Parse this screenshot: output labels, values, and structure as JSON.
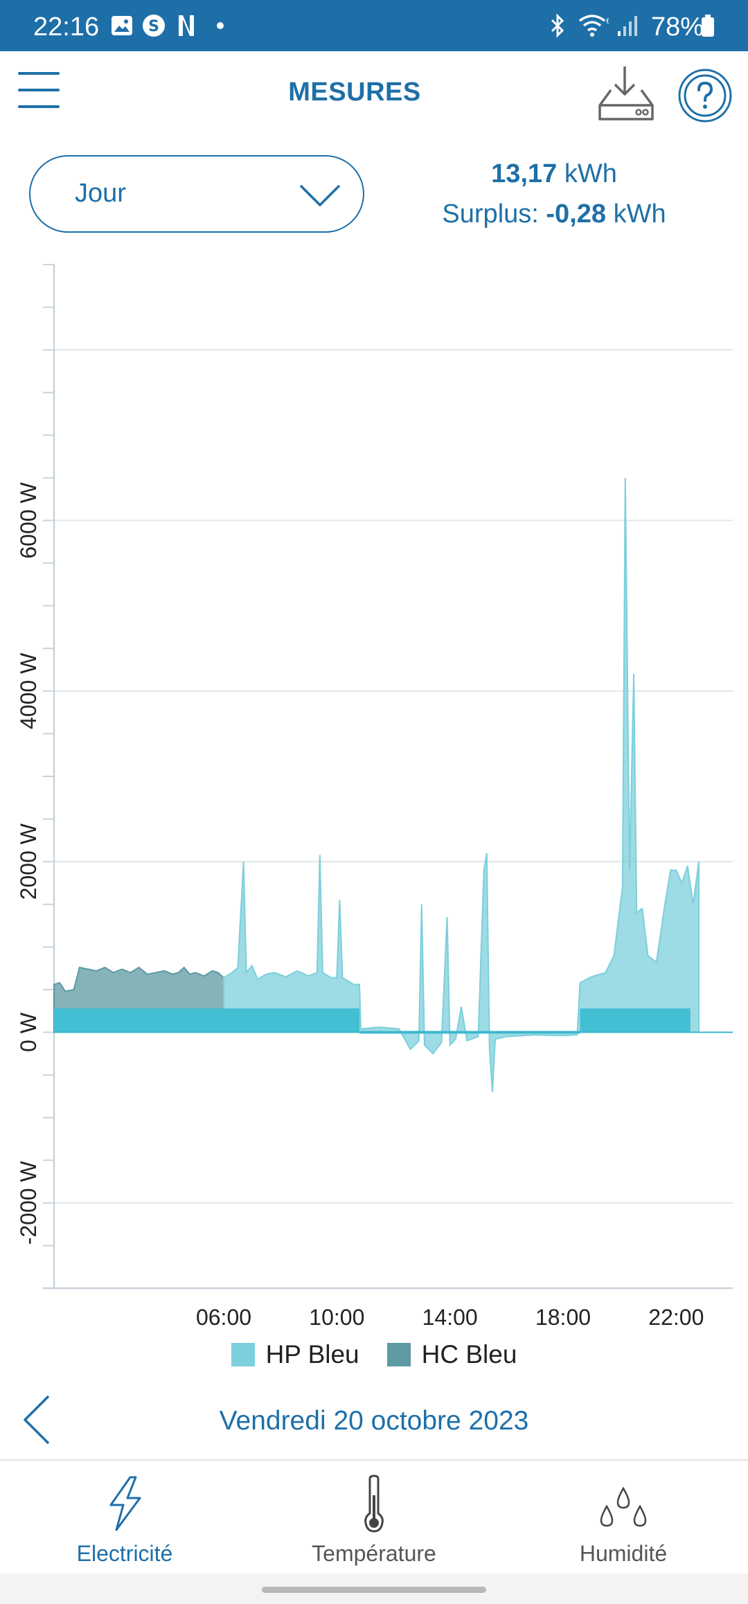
{
  "status_bar": {
    "time": "22:16",
    "battery": "78%",
    "icons": [
      "gallery-icon",
      "shazam-icon",
      "netflix-icon",
      "dot-icon",
      "bluetooth-icon",
      "wifi-icon",
      "signal-icon",
      "battery-icon"
    ]
  },
  "header": {
    "title": "MESURES",
    "icons": [
      "menu-icon",
      "download-icon",
      "help-icon"
    ]
  },
  "period": {
    "selected": "Jour"
  },
  "summary": {
    "total_value": "13,17",
    "total_unit": " kWh",
    "surplus_label": "Surplus: ",
    "surplus_value": "-0,28",
    "surplus_unit": " kWh"
  },
  "chart_data": {
    "type": "area",
    "ylim": [
      -3000,
      9000
    ],
    "y_ticks": [
      -2000,
      0,
      2000,
      4000,
      6000
    ],
    "y_tick_labels": [
      "-2000 W",
      "0 W",
      "2000 W",
      "4000 W",
      "6000 W"
    ],
    "x_range_hours": [
      0,
      24
    ],
    "x_ticks": [
      6,
      10,
      14,
      18,
      22
    ],
    "x_tick_labels": [
      "06:00",
      "10:00",
      "14:00",
      "18:00",
      "22:00"
    ],
    "grid": true,
    "legend_position": "bottom",
    "series": [
      {
        "name": "HC Bleu",
        "color": "#5e9aa3",
        "points": [
          [
            0,
            560
          ],
          [
            0.2,
            580
          ],
          [
            0.4,
            480
          ],
          [
            0.7,
            500
          ],
          [
            0.9,
            760
          ],
          [
            1.2,
            740
          ],
          [
            1.5,
            720
          ],
          [
            1.8,
            760
          ],
          [
            2.1,
            700
          ],
          [
            2.4,
            740
          ],
          [
            2.7,
            700
          ],
          [
            3.0,
            760
          ],
          [
            3.3,
            680
          ],
          [
            3.6,
            700
          ],
          [
            3.9,
            720
          ],
          [
            4.2,
            680
          ],
          [
            4.4,
            700
          ],
          [
            4.6,
            760
          ],
          [
            4.8,
            680
          ],
          [
            5.0,
            700
          ],
          [
            5.3,
            660
          ],
          [
            5.6,
            720
          ],
          [
            5.8,
            700
          ],
          [
            6.0,
            640
          ]
        ]
      },
      {
        "name": "HP Bleu",
        "color": "#7ccfdc",
        "points": [
          [
            6.0,
            640
          ],
          [
            6.3,
            700
          ],
          [
            6.5,
            760
          ],
          [
            6.7,
            2000
          ],
          [
            6.8,
            700
          ],
          [
            7.0,
            780
          ],
          [
            7.2,
            620
          ],
          [
            7.5,
            680
          ],
          [
            7.8,
            700
          ],
          [
            8.2,
            650
          ],
          [
            8.6,
            720
          ],
          [
            9.0,
            660
          ],
          [
            9.3,
            700
          ],
          [
            9.4,
            2080
          ],
          [
            9.5,
            700
          ],
          [
            9.8,
            640
          ],
          [
            10.0,
            640
          ],
          [
            10.1,
            1550
          ],
          [
            10.2,
            640
          ],
          [
            10.6,
            560
          ],
          [
            10.8,
            560
          ],
          [
            10.85,
            40
          ],
          [
            11.5,
            60
          ],
          [
            12.2,
            40
          ],
          [
            12.6,
            -200
          ],
          [
            12.9,
            -100
          ],
          [
            13.0,
            1500
          ],
          [
            13.1,
            -150
          ],
          [
            13.4,
            -250
          ],
          [
            13.7,
            -120
          ],
          [
            13.9,
            1350
          ],
          [
            14.0,
            -150
          ],
          [
            14.2,
            -80
          ],
          [
            14.4,
            300
          ],
          [
            14.6,
            -100
          ],
          [
            15.0,
            -50
          ],
          [
            15.2,
            1900
          ],
          [
            15.3,
            2100
          ],
          [
            15.4,
            -200
          ],
          [
            15.5,
            -700
          ],
          [
            15.6,
            -80
          ],
          [
            16.0,
            -50
          ],
          [
            17.0,
            -30
          ],
          [
            18.0,
            -40
          ],
          [
            18.5,
            -30
          ],
          [
            18.6,
            580
          ],
          [
            19.0,
            650
          ],
          [
            19.5,
            700
          ],
          [
            19.8,
            900
          ],
          [
            20.1,
            1700
          ],
          [
            20.2,
            6500
          ],
          [
            20.35,
            1900
          ],
          [
            20.5,
            4200
          ],
          [
            20.6,
            1400
          ],
          [
            20.8,
            1450
          ],
          [
            21.0,
            900
          ],
          [
            21.3,
            820
          ],
          [
            21.6,
            1500
          ],
          [
            21.8,
            1900
          ],
          [
            22.0,
            1900
          ],
          [
            22.2,
            1750
          ],
          [
            22.4,
            1950
          ],
          [
            22.6,
            1500
          ],
          [
            22.8,
            2000
          ]
        ]
      }
    ],
    "baseline_band": {
      "color": "#43bfd3",
      "segments": [
        [
          0,
          10.8,
          280
        ],
        [
          10.8,
          18.6,
          0
        ],
        [
          18.6,
          22.5,
          280
        ]
      ]
    }
  },
  "date_nav": {
    "date": "Vendredi 20 octobre 2023"
  },
  "bottom_nav": {
    "tabs": [
      {
        "label": "Electricité",
        "icon": "bolt-icon",
        "active": true
      },
      {
        "label": "Température",
        "icon": "thermometer-icon",
        "active": false
      },
      {
        "label": "Humidité",
        "icon": "droplets-icon",
        "active": false
      }
    ]
  }
}
